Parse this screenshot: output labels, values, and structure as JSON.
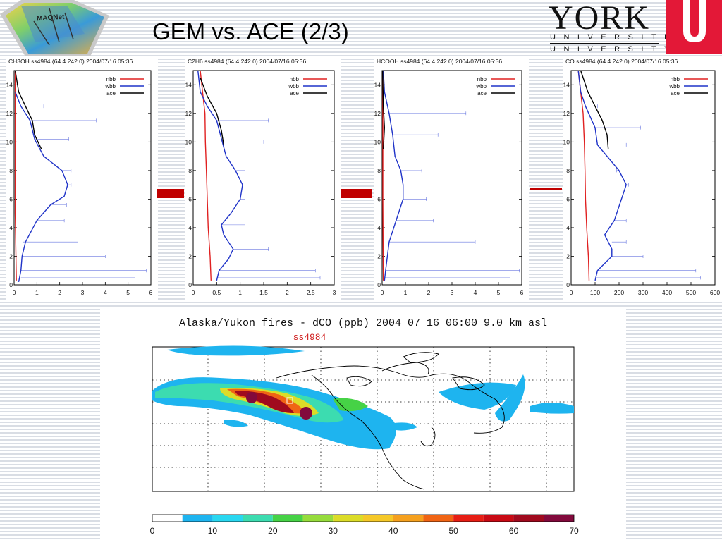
{
  "slide": {
    "title": "GEM vs. ACE (2/3)",
    "logo_left": "MAQNet",
    "logo_right": {
      "word": "YORK",
      "line1": "UNIVERSITÉ",
      "line2": "UNIVERSITY"
    },
    "colors": {
      "brand_red": "#e31837",
      "marker_red": "#c00000"
    }
  },
  "chart_data": [
    {
      "type": "line",
      "title": "CH3OH  ss4984 (64.4 242.0) 2004/07/16 05:36",
      "xlim": [
        0,
        6
      ],
      "xticks": [
        "0",
        "1",
        "2",
        "3",
        "4",
        "5",
        "6"
      ],
      "ylim": [
        0,
        15
      ],
      "yticks": [
        "0",
        "2",
        "4",
        "6",
        "8",
        "10",
        "12",
        "14"
      ],
      "legend_position": "top-right",
      "series": [
        {
          "name": "nbb",
          "color": "#e02020",
          "points": [
            [
              0.1,
              0.3
            ],
            [
              0.08,
              2
            ],
            [
              0.05,
              5
            ],
            [
              0.05,
              8
            ],
            [
              0.05,
              11
            ],
            [
              0.05,
              13.5
            ],
            [
              0.05,
              15
            ]
          ]
        },
        {
          "name": "wbb",
          "color": "#1f33c8",
          "points": [
            [
              0.2,
              0.2
            ],
            [
              0.3,
              1
            ],
            [
              0.35,
              2
            ],
            [
              0.5,
              3
            ],
            [
              1.0,
              4.5
            ],
            [
              1.6,
              5.6
            ],
            [
              2.2,
              6.2
            ],
            [
              2.35,
              7
            ],
            [
              2.1,
              8
            ],
            [
              1.3,
              9
            ],
            [
              0.9,
              10.2
            ],
            [
              0.7,
              11.5
            ],
            [
              0.3,
              12.5
            ],
            [
              0.05,
              13.5
            ]
          ]
        },
        {
          "name": "ace",
          "color": "#000000",
          "points": [
            [
              1.2,
              9.5
            ],
            [
              0.9,
              10.5
            ],
            [
              0.8,
              11.5
            ],
            [
              0.5,
              12.5
            ],
            [
              0.2,
              13.5
            ],
            [
              0.05,
              15
            ]
          ]
        }
      ],
      "error_bars": [
        [
          0.3,
          0.5,
          5.3
        ],
        [
          0.3,
          1,
          5.8
        ],
        [
          0.4,
          2,
          4.0
        ],
        [
          0.4,
          3,
          2.8
        ],
        [
          1.0,
          4.5,
          2.2
        ],
        [
          1.6,
          5.6,
          2.3
        ],
        [
          2.3,
          7,
          2.5
        ],
        [
          2.1,
          8,
          2.5
        ],
        [
          0.9,
          10.2,
          2.4
        ],
        [
          0.7,
          11.5,
          3.6
        ],
        [
          0.3,
          12.5,
          1.3
        ]
      ]
    },
    {
      "type": "line",
      "title": "C2H6  ss4984 (64.4 242.0) 2004/07/16 05:36",
      "xlim": [
        0,
        3
      ],
      "xticks": [
        "0",
        "0.5",
        "1",
        "1.5",
        "2",
        "2.5",
        "3"
      ],
      "ylim": [
        0,
        15
      ],
      "yticks": [
        "0",
        "2",
        "4",
        "6",
        "8",
        "10",
        "12",
        "14"
      ],
      "legend_position": "top-right",
      "series": [
        {
          "name": "nbb",
          "color": "#e02020",
          "points": [
            [
              0.38,
              0.3
            ],
            [
              0.36,
              2
            ],
            [
              0.32,
              4
            ],
            [
              0.3,
              6
            ],
            [
              0.28,
              8
            ],
            [
              0.26,
              10
            ],
            [
              0.25,
              12
            ],
            [
              0.2,
              13.5
            ],
            [
              0.15,
              15
            ]
          ]
        },
        {
          "name": "wbb",
          "color": "#1f33c8",
          "points": [
            [
              0.5,
              0.3
            ],
            [
              0.55,
              1
            ],
            [
              0.75,
              1.8
            ],
            [
              0.85,
              2.5
            ],
            [
              0.65,
              3.5
            ],
            [
              0.6,
              4.2
            ],
            [
              0.8,
              5
            ],
            [
              1.0,
              6
            ],
            [
              1.05,
              7
            ],
            [
              0.9,
              8
            ],
            [
              0.7,
              9
            ],
            [
              0.62,
              10
            ],
            [
              0.5,
              11.5
            ],
            [
              0.3,
              12.5
            ],
            [
              0.15,
              13.5
            ],
            [
              0.1,
              15
            ]
          ]
        },
        {
          "name": "ace",
          "color": "#000000",
          "points": [
            [
              0.65,
              9.8
            ],
            [
              0.6,
              10.8
            ],
            [
              0.5,
              12
            ],
            [
              0.3,
              13.2
            ],
            [
              0.15,
              14.5
            ]
          ]
        }
      ],
      "error_bars": [
        [
          0.5,
          0.5,
          2.7
        ],
        [
          0.55,
          1,
          2.6
        ],
        [
          0.85,
          2.5,
          1.6
        ],
        [
          0.6,
          4.2,
          1.1
        ],
        [
          1.0,
          6,
          1.1
        ],
        [
          0.9,
          8,
          1.1
        ],
        [
          0.62,
          10,
          1.5
        ],
        [
          0.5,
          11.5,
          1.6
        ],
        [
          0.3,
          12.5,
          0.7
        ]
      ]
    },
    {
      "type": "line",
      "title": "HCOOH  ss4984 (64.4 242.0) 2004/07/16 05:36",
      "xlim": [
        0,
        6
      ],
      "xticks": [
        "0",
        "1",
        "2",
        "3",
        "4",
        "5",
        "6"
      ],
      "ylim": [
        0,
        15
      ],
      "yticks": [
        "0",
        "2",
        "4",
        "6",
        "8",
        "10",
        "12",
        "14"
      ],
      "legend_position": "top-right",
      "series": [
        {
          "name": "nbb",
          "color": "#e02020",
          "points": [
            [
              0.05,
              0.3
            ],
            [
              0.04,
              3
            ],
            [
              0.03,
              6
            ],
            [
              0.03,
              9
            ],
            [
              0.03,
              12
            ],
            [
              0.03,
              15
            ]
          ]
        },
        {
          "name": "wbb",
          "color": "#1f33c8",
          "points": [
            [
              0.1,
              0.3
            ],
            [
              0.15,
              1
            ],
            [
              0.3,
              3
            ],
            [
              0.6,
              4.5
            ],
            [
              0.9,
              6
            ],
            [
              0.9,
              7
            ],
            [
              0.8,
              8
            ],
            [
              0.55,
              9
            ],
            [
              0.45,
              10.5
            ],
            [
              0.3,
              12
            ],
            [
              0.1,
              13.5
            ],
            [
              0.05,
              15
            ]
          ]
        },
        {
          "name": "ace",
          "color": "#000000",
          "points": [
            [
              0.05,
              9.5
            ],
            [
              0.1,
              11
            ],
            [
              0.05,
              12.5
            ],
            [
              0.02,
              15
            ]
          ]
        }
      ],
      "error_bars": [
        [
          0.1,
          0.5,
          5.5
        ],
        [
          0.15,
          1,
          5.9
        ],
        [
          0.3,
          3,
          4.0
        ],
        [
          0.6,
          4.5,
          2.2
        ],
        [
          0.9,
          6,
          1.9
        ],
        [
          0.8,
          8,
          1.7
        ],
        [
          0.45,
          10.5,
          2.4
        ],
        [
          0.3,
          12,
          3.6
        ],
        [
          0.1,
          13.5,
          1.2
        ]
      ]
    },
    {
      "type": "line",
      "title": "CO  ss4984 (64.4 242.0) 2004/07/16 05:36",
      "xlim": [
        0,
        600
      ],
      "xticks": [
        "0",
        "100",
        "200",
        "300",
        "400",
        "500",
        "600"
      ],
      "ylim": [
        0,
        15
      ],
      "yticks": [
        "0",
        "2",
        "4",
        "6",
        "8",
        "10",
        "12",
        "14"
      ],
      "legend_position": "top-right",
      "series": [
        {
          "name": "nbb",
          "color": "#e02020",
          "points": [
            [
              75,
              0.3
            ],
            [
              72,
              2
            ],
            [
              65,
              4
            ],
            [
              60,
              6
            ],
            [
              58,
              8
            ],
            [
              55,
              10
            ],
            [
              50,
              12
            ],
            [
              40,
              13.5
            ],
            [
              30,
              15
            ]
          ]
        },
        {
          "name": "wbb",
          "color": "#1f33c8",
          "points": [
            [
              100,
              0.3
            ],
            [
              110,
              1
            ],
            [
              170,
              2
            ],
            [
              170,
              2.5
            ],
            [
              140,
              3.5
            ],
            [
              180,
              4.5
            ],
            [
              200,
              5.5
            ],
            [
              230,
              7
            ],
            [
              200,
              8
            ],
            [
              160,
              8.8
            ],
            [
              110,
              9.8
            ],
            [
              100,
              11
            ],
            [
              60,
              12.5
            ],
            [
              40,
              13.5
            ],
            [
              30,
              15
            ]
          ]
        },
        {
          "name": "ace",
          "color": "#000000",
          "points": [
            [
              155,
              9.5
            ],
            [
              150,
              10.5
            ],
            [
              130,
              11.5
            ],
            [
              100,
              12.5
            ],
            [
              70,
              13.5
            ],
            [
              40,
              15
            ]
          ]
        }
      ],
      "error_bars": [
        [
          100,
          0.5,
          540
        ],
        [
          110,
          1,
          520
        ],
        [
          170,
          2,
          300
        ],
        [
          170,
          3,
          230
        ],
        [
          180,
          4.5,
          230
        ],
        [
          230,
          7,
          240
        ],
        [
          200,
          8,
          190
        ],
        [
          110,
          9.8,
          230
        ],
        [
          100,
          11,
          290
        ],
        [
          60,
          12.5,
          110
        ]
      ]
    },
    {
      "type": "heatmap",
      "title": "Alaska/Yukon fires - dCO (ppb)   2004 07 16 06:00  9.0 km asl",
      "subtitle": "ss4984",
      "colorbar": {
        "ticks": [
          "0",
          "10",
          "20",
          "30",
          "40",
          "50",
          "60",
          "70"
        ],
        "levels": [
          0,
          5,
          10,
          15,
          20,
          25,
          30,
          35,
          40,
          45,
          50,
          55,
          60,
          65,
          70
        ],
        "colors": [
          "#ffffff",
          "#1eb4ef",
          "#29d7f0",
          "#3cdcb0",
          "#46d246",
          "#96dc3c",
          "#dcdc28",
          "#f5c828",
          "#f5a01e",
          "#f06414",
          "#e61e14",
          "#c80a14",
          "#a00a1e",
          "#820a3c"
        ]
      }
    }
  ]
}
